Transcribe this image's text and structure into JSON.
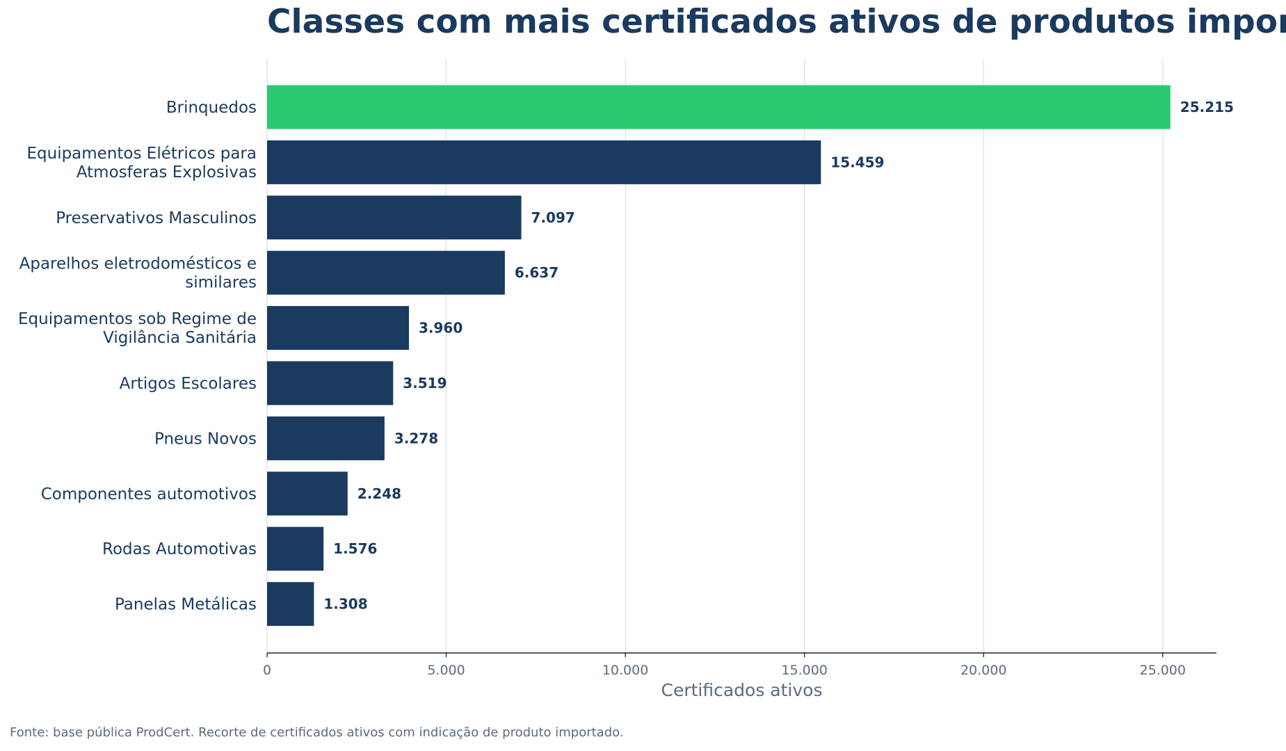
{
  "chart_data": {
    "type": "bar",
    "orientation": "horizontal",
    "title": "Classes com mais certificados ativos de produtos importados",
    "xlabel": "Certificados ativos",
    "ylabel": "",
    "categories": [
      [
        "Brinquedos"
      ],
      [
        "Equipamentos Elétricos para",
        "Atmosferas Explosivas"
      ],
      [
        "Preservativos Masculinos"
      ],
      [
        "Aparelhos eletrodomésticos e",
        "similares"
      ],
      [
        "Equipamentos sob Regime de",
        "Vigilância Sanitária"
      ],
      [
        "Artigos Escolares"
      ],
      [
        "Pneus Novos"
      ],
      [
        "Componentes automotivos"
      ],
      [
        "Rodas Automotivas"
      ],
      [
        "Panelas Metálicas"
      ]
    ],
    "values": [
      25215,
      15459,
      7097,
      6637,
      3960,
      3519,
      3278,
      2248,
      1576,
      1308
    ],
    "value_labels": [
      "25.215",
      "15.459",
      "7.097",
      "6.637",
      "3.960",
      "3.519",
      "3.278",
      "2.248",
      "1.576",
      "1.308"
    ],
    "xticks": [
      0,
      5000,
      10000,
      15000,
      20000,
      25000
    ],
    "xtick_labels": [
      "0",
      "5.000",
      "10.000",
      "15.000",
      "20.000",
      "25.000"
    ],
    "xlim": [
      0,
      26500
    ],
    "grid": "vertical",
    "highlight_index": 0,
    "colors": {
      "highlight": "#2ac970",
      "default": "#1a3a5f",
      "title": "#1a3a5f",
      "muted": "#5b6b80",
      "grid": "#d9e2ea"
    }
  },
  "footer": "Fonte: base pública ProdCert. Recorte de certificados ativos com indicação de produto importado."
}
